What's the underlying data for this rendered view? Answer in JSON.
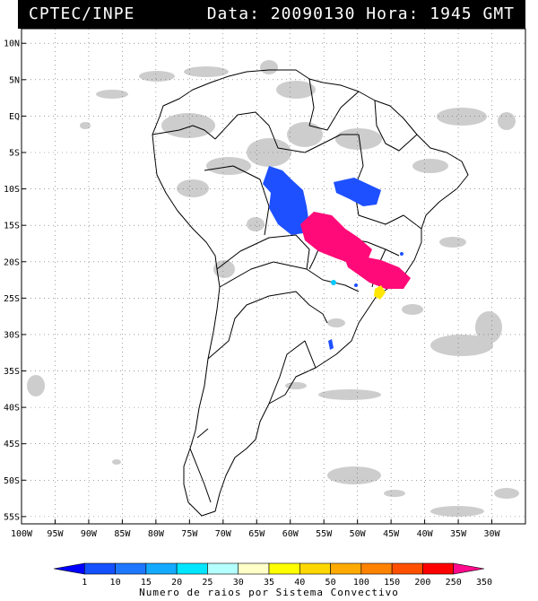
{
  "header": {
    "agency": "CPTEC/INPE",
    "datetime": "Data: 20090130 Hora: 1945 GMT"
  },
  "map": {
    "lon_range": [
      -100,
      -25
    ],
    "lat_range": [
      -56,
      12
    ],
    "lat_ticks": [
      {
        "value": 10,
        "label": "10N"
      },
      {
        "value": 5,
        "label": "5N"
      },
      {
        "value": 0,
        "label": "EQ"
      },
      {
        "value": -5,
        "label": "5S"
      },
      {
        "value": -10,
        "label": "10S"
      },
      {
        "value": -15,
        "label": "15S"
      },
      {
        "value": -20,
        "label": "20S"
      },
      {
        "value": -25,
        "label": "25S"
      },
      {
        "value": -30,
        "label": "30S"
      },
      {
        "value": -35,
        "label": "35S"
      },
      {
        "value": -40,
        "label": "40S"
      },
      {
        "value": -45,
        "label": "45S"
      },
      {
        "value": -50,
        "label": "50S"
      },
      {
        "value": -55,
        "label": "55S"
      }
    ],
    "lon_ticks": [
      {
        "value": -100,
        "label": "100W"
      },
      {
        "value": -95,
        "label": "95W"
      },
      {
        "value": -90,
        "label": "90W"
      },
      {
        "value": -85,
        "label": "85W"
      },
      {
        "value": -80,
        "label": "80W"
      },
      {
        "value": -75,
        "label": "75W"
      },
      {
        "value": -70,
        "label": "70W"
      },
      {
        "value": -65,
        "label": "65W"
      },
      {
        "value": -60,
        "label": "60W"
      },
      {
        "value": -55,
        "label": "55W"
      },
      {
        "value": -50,
        "label": "50W"
      },
      {
        "value": -45,
        "label": "45W"
      },
      {
        "value": -40,
        "label": "40W"
      },
      {
        "value": -35,
        "label": "35W"
      },
      {
        "value": -30,
        "label": "30W"
      }
    ],
    "colors": {
      "land_line": "#000000",
      "cloud": "#c8c8c8",
      "grid": "#666666"
    },
    "convective_systems": [
      {
        "id": "central-brazil",
        "color": "#1e50ff",
        "center": [
          -60.5,
          -11.5
        ]
      },
      {
        "id": "bahia",
        "color": "#1e50ff",
        "center": [
          -50.5,
          -10.2
        ]
      },
      {
        "id": "goias-mg",
        "color": "#ff0a78",
        "center": [
          -54,
          -17.5
        ]
      },
      {
        "id": "sao-paulo",
        "color": "#ff0a78",
        "center": [
          -46,
          -21.8
        ]
      },
      {
        "id": "parana-yellow",
        "color": "#ffe600",
        "center": [
          -47,
          -24
        ]
      },
      {
        "id": "paraguay-cyan",
        "color": "#00c8ff",
        "center": [
          -55.8,
          -22.5
        ]
      },
      {
        "id": "rs-blue",
        "color": "#1e50ff",
        "center": [
          -57,
          -31.5
        ]
      }
    ]
  },
  "legend": {
    "labels": [
      "1",
      "10",
      "15",
      "20",
      "25",
      "30",
      "35",
      "40",
      "50",
      "100",
      "150",
      "200",
      "250",
      "350"
    ],
    "colors": [
      "#0000ff",
      "#1450ff",
      "#1e78ff",
      "#14aaff",
      "#00e6ff",
      "#b4ffff",
      "#ffffc8",
      "#ffff00",
      "#ffd700",
      "#ffaa00",
      "#ff8200",
      "#ff5000",
      "#ff0000",
      "#ff0a8c"
    ],
    "caption": "Numero de raios por Sistema Convectivo"
  }
}
